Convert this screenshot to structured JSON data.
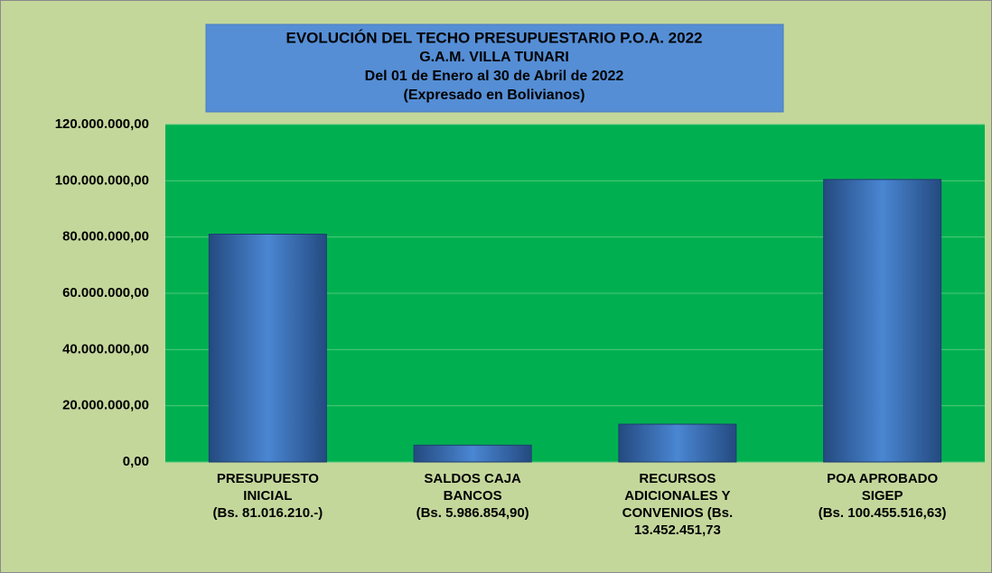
{
  "chart_data": {
    "type": "bar",
    "title": [
      "EVOLUCIÓN DEL TECHO PRESUPUESTARIO P.O.A. 2022",
      "G.A.M. VILLA TUNARI",
      "Del 01 de Enero al 30 de Abril de  2022",
      "(Expresado en Bolivianos)"
    ],
    "categories": [
      [
        "PRESUPUESTO",
        "INICIAL",
        "(Bs. 81.016.210.-)"
      ],
      [
        "SALDOS CAJA",
        "BANCOS",
        "(Bs. 5.986.854,90)"
      ],
      [
        "RECURSOS",
        "ADICIONALES Y",
        "CONVENIOS   (Bs.",
        "13.452.451,73"
      ],
      [
        "POA  APROBADO",
        "SIGEP",
        "(Bs. 100.455.516,63)"
      ]
    ],
    "values": [
      81016210,
      5986854.9,
      13452451.73,
      100455516.63
    ],
    "color": "#3a72c0",
    "ylim": [
      0,
      120000000
    ],
    "yticks": [
      {
        "value": 0,
        "label": "0,00"
      },
      {
        "value": 20000000,
        "label": "20.000.000,00"
      },
      {
        "value": 40000000,
        "label": "40.000.000,00"
      },
      {
        "value": 60000000,
        "label": "60.000.000,00"
      },
      {
        "value": 80000000,
        "label": "80.000.000,00"
      },
      {
        "value": 100000000,
        "label": "100.000.000,00"
      },
      {
        "value": 120000000,
        "label": "120.000.000,00"
      }
    ],
    "grid": true
  }
}
